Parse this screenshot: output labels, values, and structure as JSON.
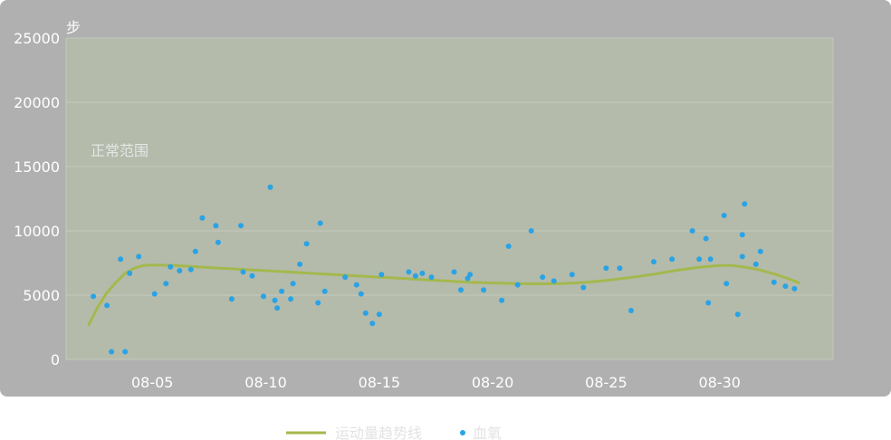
{
  "chart_data": {
    "type": "scatter",
    "ylabel": "步",
    "ylim": [
      0,
      25000
    ],
    "yticks": [
      0,
      5000,
      10000,
      15000,
      20000,
      25000
    ],
    "xlim": [
      1.2,
      35.0
    ],
    "xticks": [
      {
        "x": 5,
        "label": "08-05"
      },
      {
        "x": 10,
        "label": "08-10"
      },
      {
        "x": 15,
        "label": "08-15"
      },
      {
        "x": 20,
        "label": "08-20"
      },
      {
        "x": 25,
        "label": "08-25"
      },
      {
        "x": 30,
        "label": "08-30"
      }
    ],
    "grid": true,
    "band": {
      "label": "正常范围",
      "y_from": 0,
      "y_to": 25000,
      "color": "#b4bbab"
    },
    "legend_position": "bottom-center",
    "series": [
      {
        "name": "运动量趋势线",
        "kind": "line",
        "color": "#a5b84e",
        "points": [
          [
            2.2,
            2700
          ],
          [
            2.6,
            4100
          ],
          [
            3.0,
            5200
          ],
          [
            3.4,
            6000
          ],
          [
            3.8,
            6700
          ],
          [
            4.2,
            7100
          ],
          [
            4.6,
            7300
          ],
          [
            5.0,
            7350
          ],
          [
            6.0,
            7300
          ],
          [
            7.0,
            7200
          ],
          [
            8.0,
            7100
          ],
          [
            9.0,
            7000
          ],
          [
            10.0,
            6900
          ],
          [
            11.0,
            6800
          ],
          [
            12.0,
            6700
          ],
          [
            13.0,
            6600
          ],
          [
            14.0,
            6500
          ],
          [
            15.0,
            6400
          ],
          [
            16.0,
            6300
          ],
          [
            17.0,
            6200
          ],
          [
            18.0,
            6100
          ],
          [
            19.0,
            6000
          ],
          [
            20.0,
            5950
          ],
          [
            21.0,
            5900
          ],
          [
            22.0,
            5880
          ],
          [
            23.0,
            5900
          ],
          [
            24.0,
            5980
          ],
          [
            25.0,
            6150
          ],
          [
            26.0,
            6350
          ],
          [
            27.0,
            6600
          ],
          [
            28.0,
            6900
          ],
          [
            29.0,
            7150
          ],
          [
            30.0,
            7300
          ],
          [
            30.6,
            7300
          ],
          [
            31.2,
            7150
          ],
          [
            31.8,
            6950
          ],
          [
            32.4,
            6650
          ],
          [
            33.0,
            6300
          ],
          [
            33.5,
            5950
          ]
        ]
      },
      {
        "name": "血氧",
        "kind": "scatter",
        "color": "#29a3e6",
        "points": [
          [
            2.4,
            4900
          ],
          [
            3.0,
            4200
          ],
          [
            3.2,
            600
          ],
          [
            3.6,
            7800
          ],
          [
            3.8,
            600
          ],
          [
            4.0,
            6700
          ],
          [
            4.4,
            8000
          ],
          [
            5.1,
            5100
          ],
          [
            5.6,
            5900
          ],
          [
            5.8,
            7200
          ],
          [
            6.2,
            6900
          ],
          [
            6.7,
            7000
          ],
          [
            6.9,
            8400
          ],
          [
            7.2,
            11000
          ],
          [
            7.8,
            10400
          ],
          [
            7.9,
            9100
          ],
          [
            8.5,
            4700
          ],
          [
            8.9,
            10400
          ],
          [
            9.0,
            6800
          ],
          [
            9.4,
            6500
          ],
          [
            9.9,
            4900
          ],
          [
            10.2,
            13400
          ],
          [
            10.4,
            4600
          ],
          [
            10.5,
            4000
          ],
          [
            10.7,
            5300
          ],
          [
            11.1,
            4700
          ],
          [
            11.2,
            5900
          ],
          [
            11.5,
            7400
          ],
          [
            11.8,
            9000
          ],
          [
            12.3,
            4400
          ],
          [
            12.4,
            10600
          ],
          [
            12.6,
            5300
          ],
          [
            13.5,
            6400
          ],
          [
            14.0,
            5800
          ],
          [
            14.2,
            5100
          ],
          [
            14.4,
            3600
          ],
          [
            14.7,
            2800
          ],
          [
            15.0,
            3500
          ],
          [
            15.1,
            6600
          ],
          [
            16.3,
            6800
          ],
          [
            16.6,
            6500
          ],
          [
            16.9,
            6700
          ],
          [
            17.3,
            6400
          ],
          [
            18.3,
            6800
          ],
          [
            18.6,
            5400
          ],
          [
            18.9,
            6300
          ],
          [
            19.0,
            6600
          ],
          [
            19.6,
            5400
          ],
          [
            20.4,
            4600
          ],
          [
            20.7,
            8800
          ],
          [
            21.1,
            5800
          ],
          [
            21.7,
            10000
          ],
          [
            22.2,
            6400
          ],
          [
            22.7,
            6100
          ],
          [
            23.5,
            6600
          ],
          [
            24.0,
            5600
          ],
          [
            25.0,
            7100
          ],
          [
            25.6,
            7100
          ],
          [
            26.1,
            3800
          ],
          [
            27.1,
            7600
          ],
          [
            27.9,
            7800
          ],
          [
            28.8,
            10000
          ],
          [
            29.1,
            7800
          ],
          [
            29.4,
            9400
          ],
          [
            29.5,
            4400
          ],
          [
            29.6,
            7800
          ],
          [
            30.2,
            11200
          ],
          [
            30.3,
            5900
          ],
          [
            30.8,
            3500
          ],
          [
            31.0,
            9700
          ],
          [
            31.0,
            8000
          ],
          [
            31.1,
            12100
          ],
          [
            31.6,
            7400
          ],
          [
            31.8,
            8400
          ],
          [
            32.4,
            6000
          ],
          [
            32.9,
            5700
          ],
          [
            33.3,
            5500
          ]
        ]
      }
    ]
  }
}
